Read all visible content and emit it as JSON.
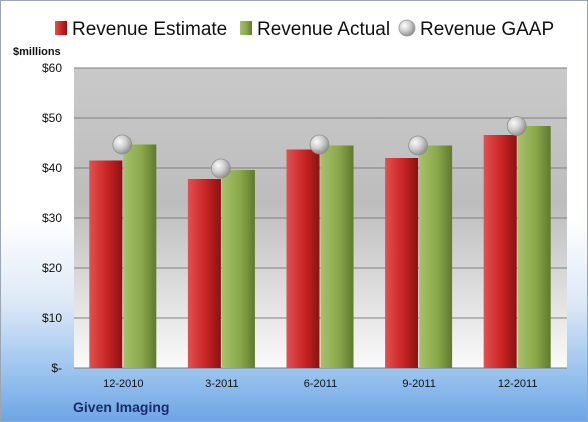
{
  "chart_data": {
    "type": "bar",
    "title": "",
    "ylabel": "$millions",
    "xlabel": "",
    "company": "Given Imaging",
    "categories": [
      "12-2010",
      "3-2011",
      "6-2011",
      "9-2011",
      "12-2011"
    ],
    "series": [
      {
        "name": "Revenue Estimate",
        "kind": "bar",
        "color": "#d42a2a",
        "values": [
          41.5,
          37.8,
          43.7,
          42.0,
          46.6
        ]
      },
      {
        "name": "Revenue Actual",
        "kind": "bar",
        "color": "#8fae4e",
        "values": [
          44.7,
          39.6,
          44.5,
          44.5,
          48.4
        ]
      },
      {
        "name": "Revenue GAAP",
        "kind": "marker",
        "color": "#b7b7b7",
        "values": [
          44.7,
          39.9,
          44.7,
          44.5,
          48.4
        ]
      }
    ],
    "ylim": [
      0,
      60
    ],
    "yticks": [
      0,
      10,
      20,
      30,
      40,
      50,
      60
    ],
    "ytick_labels": [
      "$-",
      "$10",
      "$20",
      "$30",
      "$40",
      "$50",
      "$60"
    ],
    "grid": true,
    "legend": "top",
    "colors": {
      "plot_background_top": "#c0c0c0",
      "plot_background_bottom": "#ffffff",
      "background_bottom": "#6ea6e4"
    }
  }
}
